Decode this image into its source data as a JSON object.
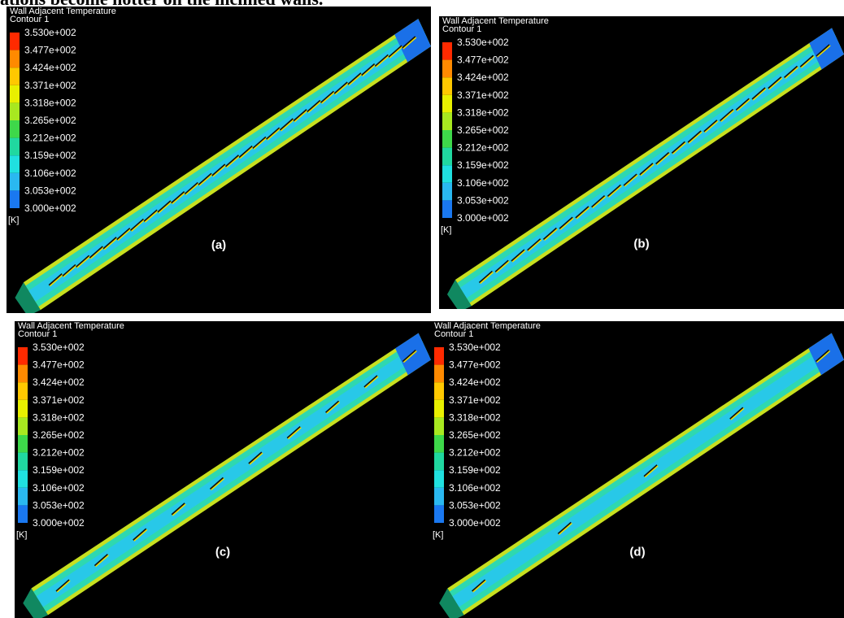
{
  "caption": "ations become hotter on the inclined walls.",
  "panels": [
    {
      "title": "Wall Adjacent Temperature",
      "subtitle": "Contour 1",
      "legend": [
        "3.530e+002",
        "3.477e+002",
        "3.424e+002",
        "3.371e+002",
        "3.318e+002",
        "3.265e+002",
        "3.212e+002",
        "3.159e+002",
        "3.106e+002",
        "3.053e+002",
        "3.000e+002"
      ],
      "unit": "[K]",
      "label": "(a)"
    },
    {
      "title": "Wall Adjacent Temperature",
      "subtitle": "Contour 1",
      "legend": [
        "3.530e+002",
        "3.477e+002",
        "3.424e+002",
        "3.371e+002",
        "3.318e+002",
        "3.265e+002",
        "3.212e+002",
        "3.159e+002",
        "3.106e+002",
        "3.053e+002",
        "3.000e+002"
      ],
      "unit": "[K]",
      "label": "(b)"
    },
    {
      "title": "Wall Adjacent Temperature",
      "subtitle": "Contour 1",
      "legend": [
        "3.530e+002",
        "3.477e+002",
        "3.424e+002",
        "3.371e+002",
        "3.318e+002",
        "3.265e+002",
        "3.212e+002",
        "3.159e+002",
        "3.106e+002",
        "3.053e+002",
        "3.000e+002"
      ],
      "unit": "[K]",
      "label": "(c)"
    },
    {
      "title": "Wall Adjacent Temperature",
      "subtitle": "Contour 1",
      "legend": [
        "3.530e+002",
        "3.477e+002",
        "3.424e+002",
        "3.371e+002",
        "3.318e+002",
        "3.265e+002",
        "3.212e+002",
        "3.159e+002",
        "3.106e+002",
        "3.053e+002",
        "3.000e+002"
      ],
      "unit": "[K]",
      "label": "(d)"
    }
  ]
}
